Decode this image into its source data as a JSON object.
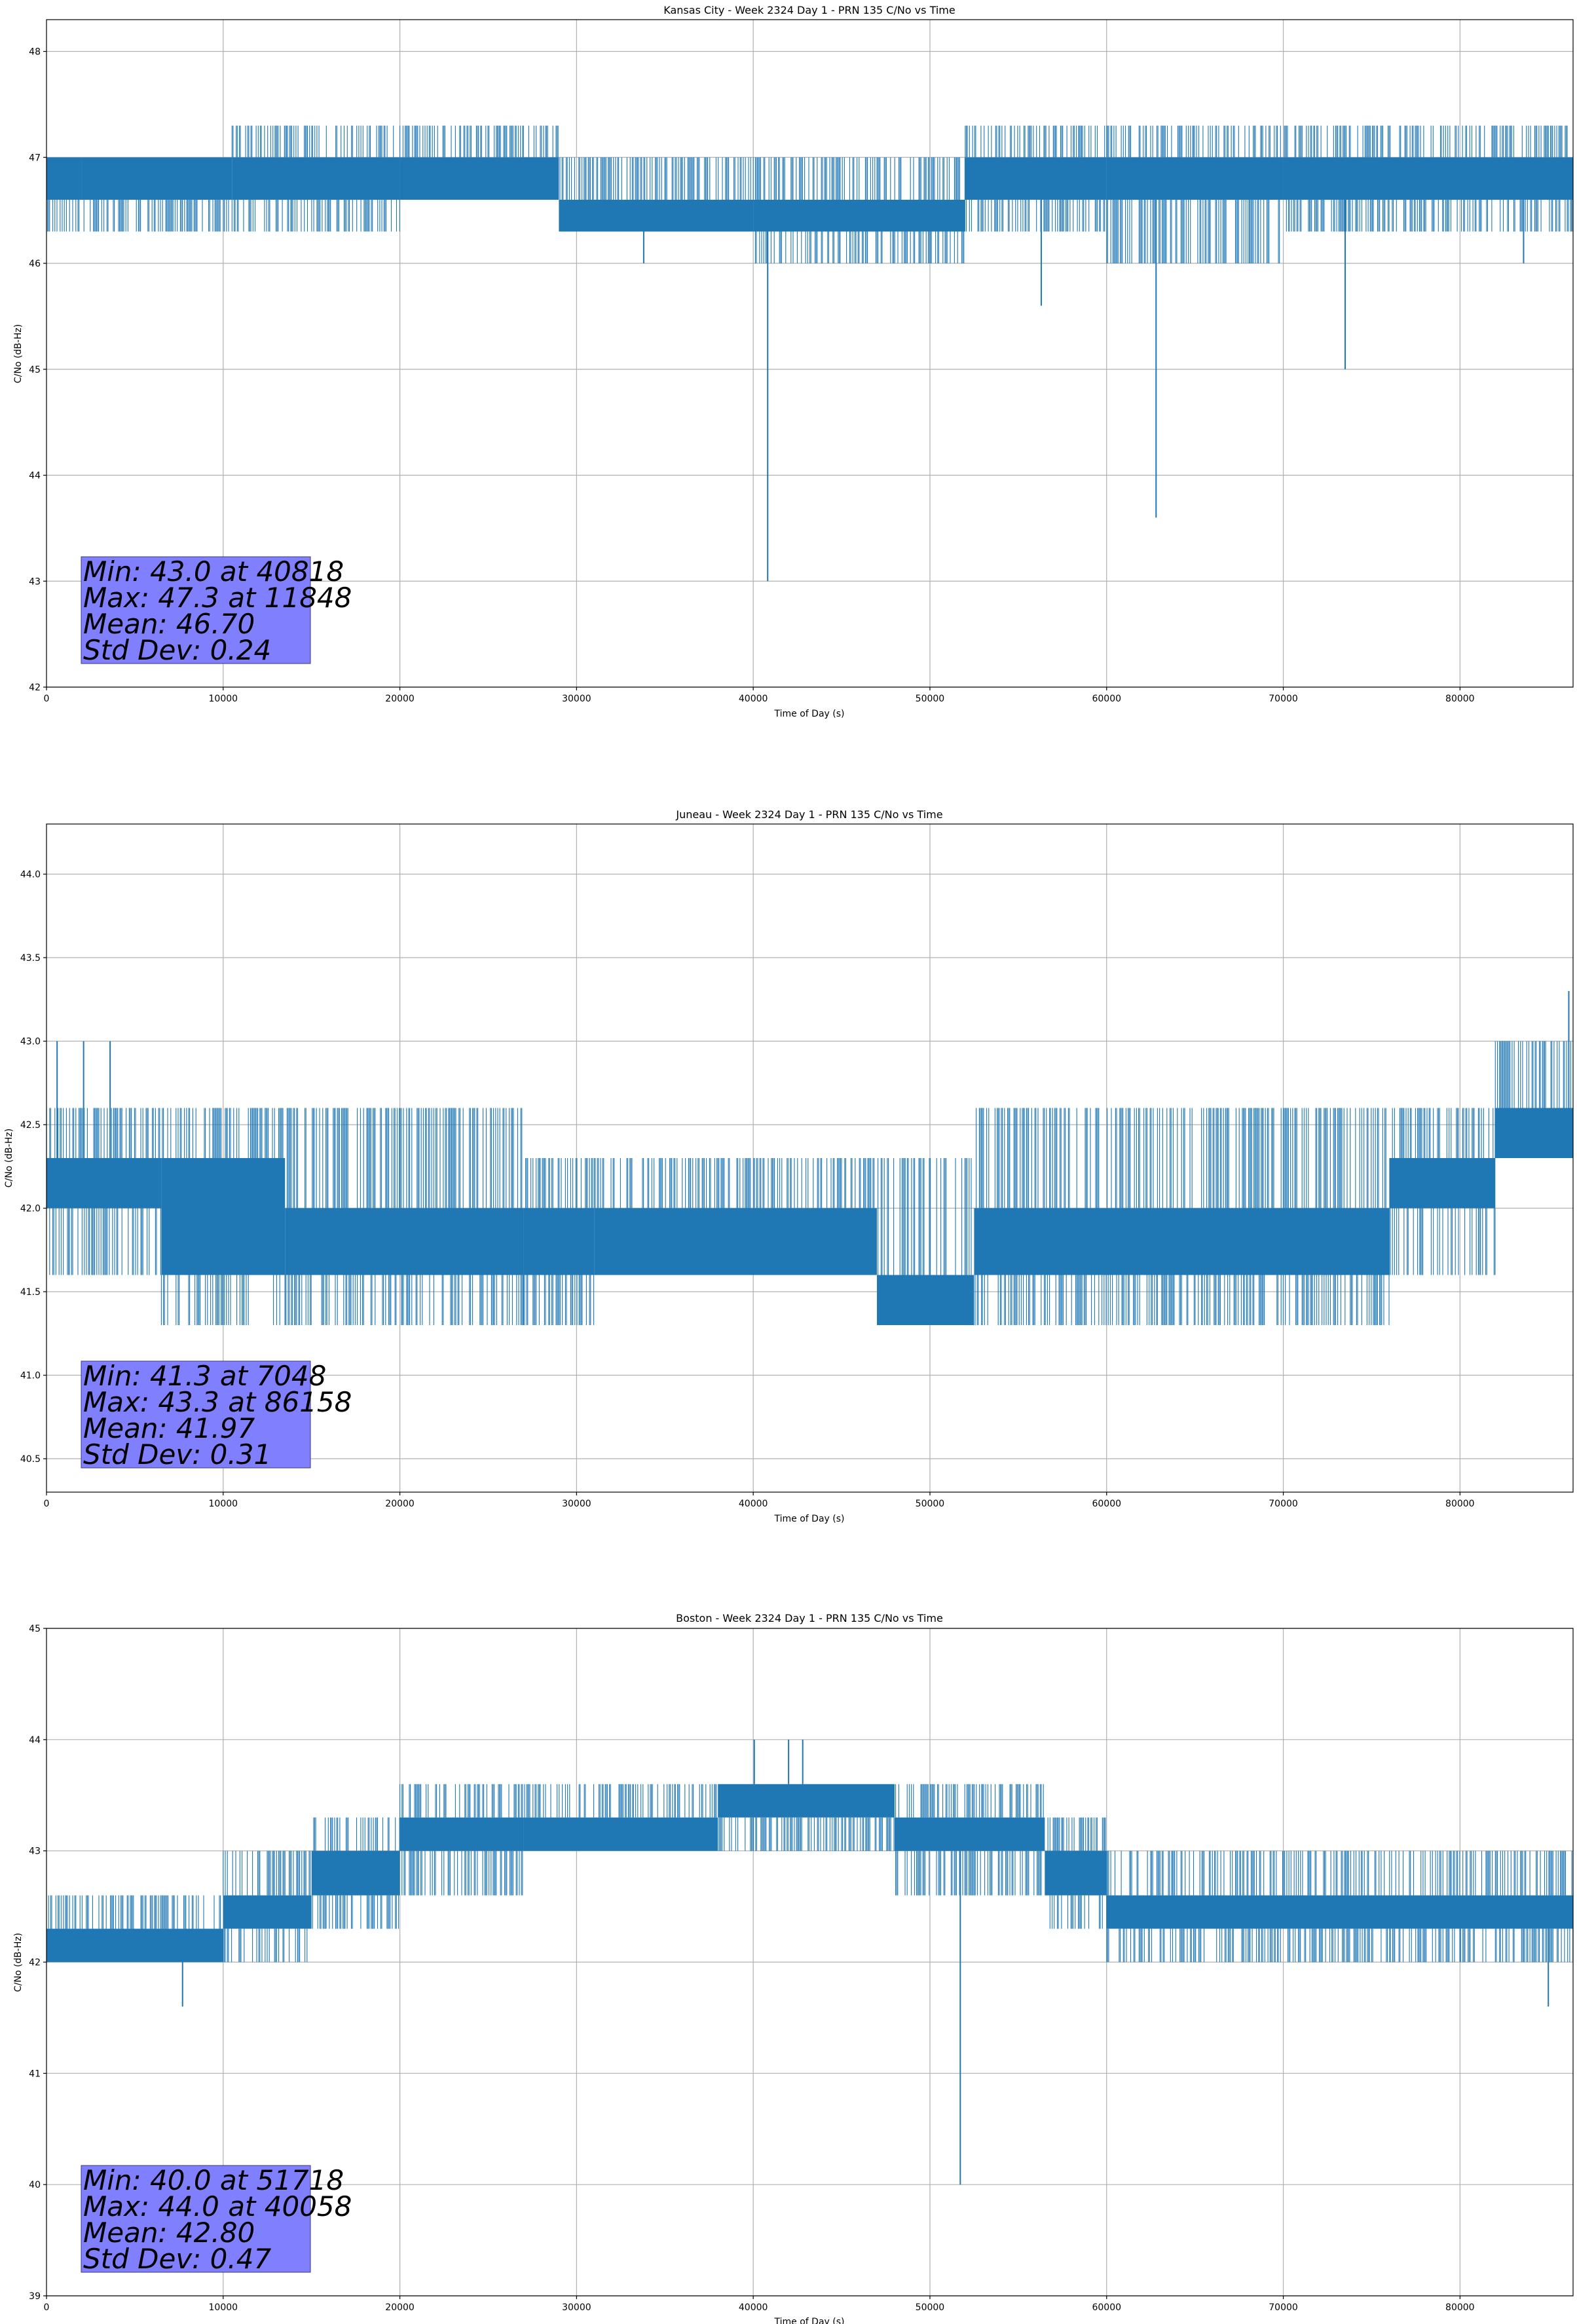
{
  "chart_data": [
    {
      "type": "line",
      "title": "Kansas City - Week 2324 Day 1 - PRN 135 C/No vs Time",
      "xlabel": "Time of Day (s)",
      "ylabel": "C/No (dB-Hz)",
      "xlim": [
        0,
        86400
      ],
      "ylim": [
        42,
        48.3
      ],
      "xticks": [
        0,
        10000,
        20000,
        30000,
        40000,
        50000,
        60000,
        70000,
        80000
      ],
      "yticks": [
        42,
        43,
        44,
        45,
        46,
        47,
        48
      ],
      "ytick_labels": [
        "42",
        "43",
        "44",
        "45",
        "46",
        "47",
        "48"
      ],
      "grid": true,
      "series_color": "#1f77b4",
      "segments": [
        {
          "x0": 0,
          "x1": 2000,
          "lo": 46.3,
          "hi": 47.0,
          "core_lo": 46.6,
          "core_hi": 47.0
        },
        {
          "x0": 2000,
          "x1": 10500,
          "lo": 46.3,
          "hi": 47.0,
          "core_lo": 46.6,
          "core_hi": 47.0
        },
        {
          "x0": 10500,
          "x1": 20000,
          "lo": 46.3,
          "hi": 47.3,
          "core_lo": 46.6,
          "core_hi": 47.0
        },
        {
          "x0": 20000,
          "x1": 29000,
          "lo": 46.6,
          "hi": 47.3,
          "core_lo": 46.6,
          "core_hi": 47.0
        },
        {
          "x0": 29000,
          "x1": 40000,
          "lo": 46.3,
          "hi": 47.0,
          "core_lo": 46.3,
          "core_hi": 46.6
        },
        {
          "x0": 40000,
          "x1": 52000,
          "lo": 46.0,
          "hi": 47.0,
          "core_lo": 46.3,
          "core_hi": 46.6
        },
        {
          "x0": 52000,
          "x1": 60000,
          "lo": 46.3,
          "hi": 47.3,
          "core_lo": 46.6,
          "core_hi": 47.0
        },
        {
          "x0": 60000,
          "x1": 70000,
          "lo": 46.0,
          "hi": 47.3,
          "core_lo": 46.6,
          "core_hi": 47.0
        },
        {
          "x0": 70000,
          "x1": 86400,
          "lo": 46.3,
          "hi": 47.3,
          "core_lo": 46.6,
          "core_hi": 47.0
        }
      ],
      "spikes": [
        {
          "x": 33800,
          "y": 46.0
        },
        {
          "x": 40818,
          "y": 43.0
        },
        {
          "x": 56300,
          "y": 45.6
        },
        {
          "x": 62800,
          "y": 43.6
        },
        {
          "x": 68100,
          "y": 46.0
        },
        {
          "x": 73500,
          "y": 45.0
        },
        {
          "x": 83600,
          "y": 46.0
        }
      ],
      "stats": {
        "min": "Min: 43.0 at 40818",
        "max": "Max: 47.3 at 11848",
        "mean": "Mean: 46.70",
        "std": "Std Dev: 0.24"
      }
    },
    {
      "type": "line",
      "title": "Juneau - Week 2324 Day 1 - PRN 135 C/No vs Time",
      "xlabel": "Time of Day (s)",
      "ylabel": "C/No (dB-Hz)",
      "xlim": [
        0,
        86400
      ],
      "ylim": [
        40.3,
        44.3
      ],
      "xticks": [
        0,
        10000,
        20000,
        30000,
        40000,
        50000,
        60000,
        70000,
        80000
      ],
      "yticks": [
        40.5,
        41.0,
        41.5,
        42.0,
        42.5,
        43.0,
        43.5,
        44.0
      ],
      "ytick_labels": [
        "40.5",
        "41.0",
        "41.5",
        "42.0",
        "42.5",
        "43.0",
        "43.5",
        "44.0"
      ],
      "grid": true,
      "series_color": "#1f77b4",
      "segments": [
        {
          "x0": 0,
          "x1": 6500,
          "lo": 41.6,
          "hi": 42.6,
          "core_lo": 42.0,
          "core_hi": 42.3
        },
        {
          "x0": 6500,
          "x1": 13500,
          "lo": 41.3,
          "hi": 42.6,
          "core_lo": 41.6,
          "core_hi": 42.3
        },
        {
          "x0": 13500,
          "x1": 27000,
          "lo": 41.3,
          "hi": 42.6,
          "core_lo": 41.6,
          "core_hi": 42.0
        },
        {
          "x0": 27000,
          "x1": 31000,
          "lo": 41.3,
          "hi": 42.3,
          "core_lo": 41.6,
          "core_hi": 42.0
        },
        {
          "x0": 31000,
          "x1": 47000,
          "lo": 41.6,
          "hi": 42.3,
          "core_lo": 41.6,
          "core_hi": 42.0
        },
        {
          "x0": 47000,
          "x1": 52500,
          "lo": 41.3,
          "hi": 42.3,
          "core_lo": 41.3,
          "core_hi": 41.6
        },
        {
          "x0": 52500,
          "x1": 76000,
          "lo": 41.3,
          "hi": 42.6,
          "core_lo": 41.6,
          "core_hi": 42.0
        },
        {
          "x0": 76000,
          "x1": 82000,
          "lo": 41.6,
          "hi": 42.6,
          "core_lo": 42.0,
          "core_hi": 42.3
        },
        {
          "x0": 82000,
          "x1": 86400,
          "lo": 42.3,
          "hi": 43.0,
          "core_lo": 42.3,
          "core_hi": 42.6
        }
      ],
      "spikes": [
        {
          "x": 600,
          "y": 43.0
        },
        {
          "x": 2100,
          "y": 43.0
        },
        {
          "x": 3600,
          "y": 43.0
        },
        {
          "x": 86158,
          "y": 43.3
        }
      ],
      "stats": {
        "min": "Min: 41.3 at 7048",
        "max": "Max: 43.3 at 86158",
        "mean": "Mean: 41.97",
        "std": "Std Dev: 0.31"
      }
    },
    {
      "type": "line",
      "title": "Boston - Week 2324 Day 1 - PRN 135 C/No vs Time",
      "xlabel": "Time of Day (s)",
      "ylabel": "C/No (dB-Hz)",
      "xlim": [
        0,
        86400
      ],
      "ylim": [
        39,
        45
      ],
      "xticks": [
        0,
        10000,
        20000,
        30000,
        40000,
        50000,
        60000,
        70000,
        80000
      ],
      "yticks": [
        39,
        40,
        41,
        42,
        43,
        44,
        45
      ],
      "ytick_labels": [
        "39",
        "40",
        "41",
        "42",
        "43",
        "44",
        "45"
      ],
      "grid": true,
      "series_color": "#1f77b4",
      "segments": [
        {
          "x0": 0,
          "x1": 10000,
          "lo": 42.0,
          "hi": 42.6,
          "core_lo": 42.0,
          "core_hi": 42.3
        },
        {
          "x0": 10000,
          "x1": 15000,
          "lo": 42.0,
          "hi": 43.0,
          "core_lo": 42.3,
          "core_hi": 42.6
        },
        {
          "x0": 15000,
          "x1": 20000,
          "lo": 42.3,
          "hi": 43.3,
          "core_lo": 42.6,
          "core_hi": 43.0
        },
        {
          "x0": 20000,
          "x1": 27000,
          "lo": 42.6,
          "hi": 43.6,
          "core_lo": 43.0,
          "core_hi": 43.3
        },
        {
          "x0": 27000,
          "x1": 38000,
          "lo": 43.0,
          "hi": 43.6,
          "core_lo": 43.0,
          "core_hi": 43.3
        },
        {
          "x0": 38000,
          "x1": 48000,
          "lo": 43.0,
          "hi": 43.6,
          "core_lo": 43.3,
          "core_hi": 43.6
        },
        {
          "x0": 48000,
          "x1": 56500,
          "lo": 42.6,
          "hi": 43.6,
          "core_lo": 43.0,
          "core_hi": 43.3
        },
        {
          "x0": 56500,
          "x1": 60000,
          "lo": 42.3,
          "hi": 43.3,
          "core_lo": 42.6,
          "core_hi": 43.0
        },
        {
          "x0": 60000,
          "x1": 86400,
          "lo": 42.0,
          "hi": 43.0,
          "core_lo": 42.3,
          "core_hi": 42.6
        }
      ],
      "spikes": [
        {
          "x": 7700,
          "y": 41.6
        },
        {
          "x": 40058,
          "y": 44.0
        },
        {
          "x": 42000,
          "y": 44.0
        },
        {
          "x": 42800,
          "y": 44.0
        },
        {
          "x": 51718,
          "y": 40.0
        },
        {
          "x": 85000,
          "y": 41.6
        }
      ],
      "stats": {
        "min": "Min: 40.0 at 51718",
        "max": "Max: 44.0 at 40058",
        "mean": "Mean: 42.80",
        "std": "Std Dev: 0.47"
      }
    }
  ]
}
